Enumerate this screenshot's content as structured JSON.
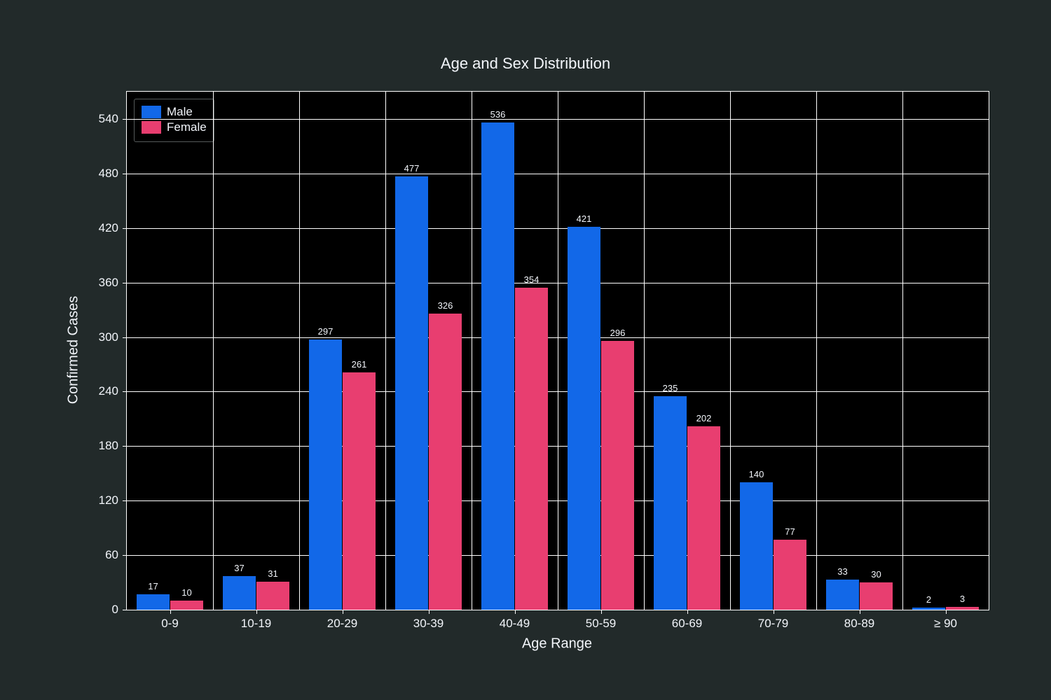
{
  "chart": {
    "type": "bar",
    "title": "Age and Sex Distribution",
    "title_fontsize": 22,
    "title_color": "#f2f5fa",
    "background_color": "#222a2a",
    "plot_bgcolor": "#000000",
    "grid_color": "#ffffff",
    "border_color": "#ffffff",
    "x_axis": {
      "title": "Age Range",
      "title_fontsize": 20,
      "tick_fontsize": 17,
      "tick_color": "#f2f5fa",
      "categories": [
        "0-9",
        "10-19",
        "20-29",
        "30-39",
        "40-49",
        "50-59",
        "60-69",
        "70-79",
        "80-89",
        "≥ 90"
      ]
    },
    "y_axis": {
      "title": "Confirmed Cases",
      "title_fontsize": 20,
      "tick_fontsize": 17,
      "tick_color": "#f2f5fa",
      "min": 0,
      "max": 570,
      "tick_step": 60,
      "ticks": [
        0,
        60,
        120,
        180,
        240,
        300,
        360,
        420,
        480,
        540
      ]
    },
    "bar_label_fontsize": 13,
    "bar_label_color": "#f2f5fa",
    "series": [
      {
        "name": "Male",
        "color": "#1268e8",
        "values": [
          17,
          37,
          297,
          477,
          536,
          421,
          235,
          140,
          33,
          2
        ]
      },
      {
        "name": "Female",
        "color": "#e83e70",
        "values": [
          10,
          31,
          261,
          326,
          354,
          296,
          202,
          77,
          30,
          3
        ]
      }
    ],
    "bar_group_width": 0.78,
    "legend": {
      "border_color": "#555a5a",
      "text_color": "#f2f5fa",
      "fontsize": 17
    }
  }
}
